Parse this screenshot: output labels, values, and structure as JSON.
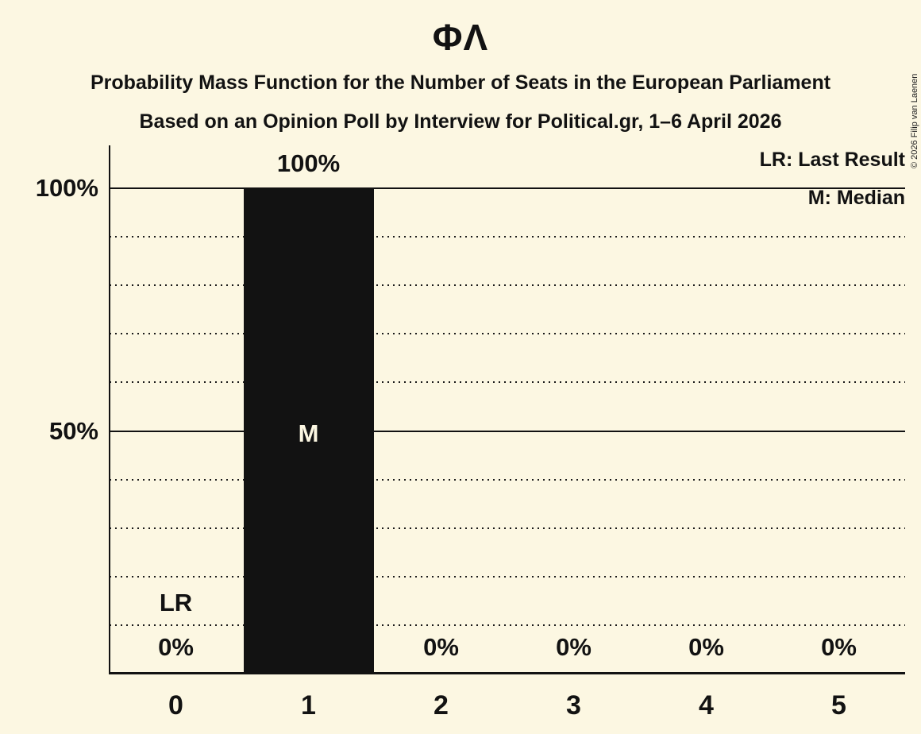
{
  "chart_data": {
    "type": "bar",
    "title": "ΦΛ",
    "subtitle": "Probability Mass Function for the Number of Seats in the European Parliament",
    "poll_line": "Based on an Opinion Poll by Interview for Political.gr, 1–6 April 2026",
    "xlabel": "",
    "ylabel": "",
    "categories": [
      "0",
      "1",
      "2",
      "3",
      "4",
      "5"
    ],
    "values": [
      0,
      100,
      0,
      0,
      0,
      0
    ],
    "value_labels": [
      "0%",
      "100%",
      "0%",
      "0%",
      "0%",
      "0%"
    ],
    "y_tick_labels": [
      "100%",
      "50%"
    ],
    "ylim": [
      0,
      100
    ],
    "grid": "dotted horizontal lines every 10%, solid lines at 50% and 100%",
    "legend_position": "top-right",
    "legend": {
      "lr": "LR: Last Result",
      "m": "M: Median"
    },
    "annotations": {
      "median_label": "M",
      "median_category": "1",
      "last_result_label": "LR",
      "last_result_category": "0"
    },
    "colors": {
      "background": "#fcf7e2",
      "bar": "#121212",
      "text": "#121212",
      "median_text": "#fcf7e2"
    }
  },
  "copyright": "© 2026 Filip van Laenen"
}
